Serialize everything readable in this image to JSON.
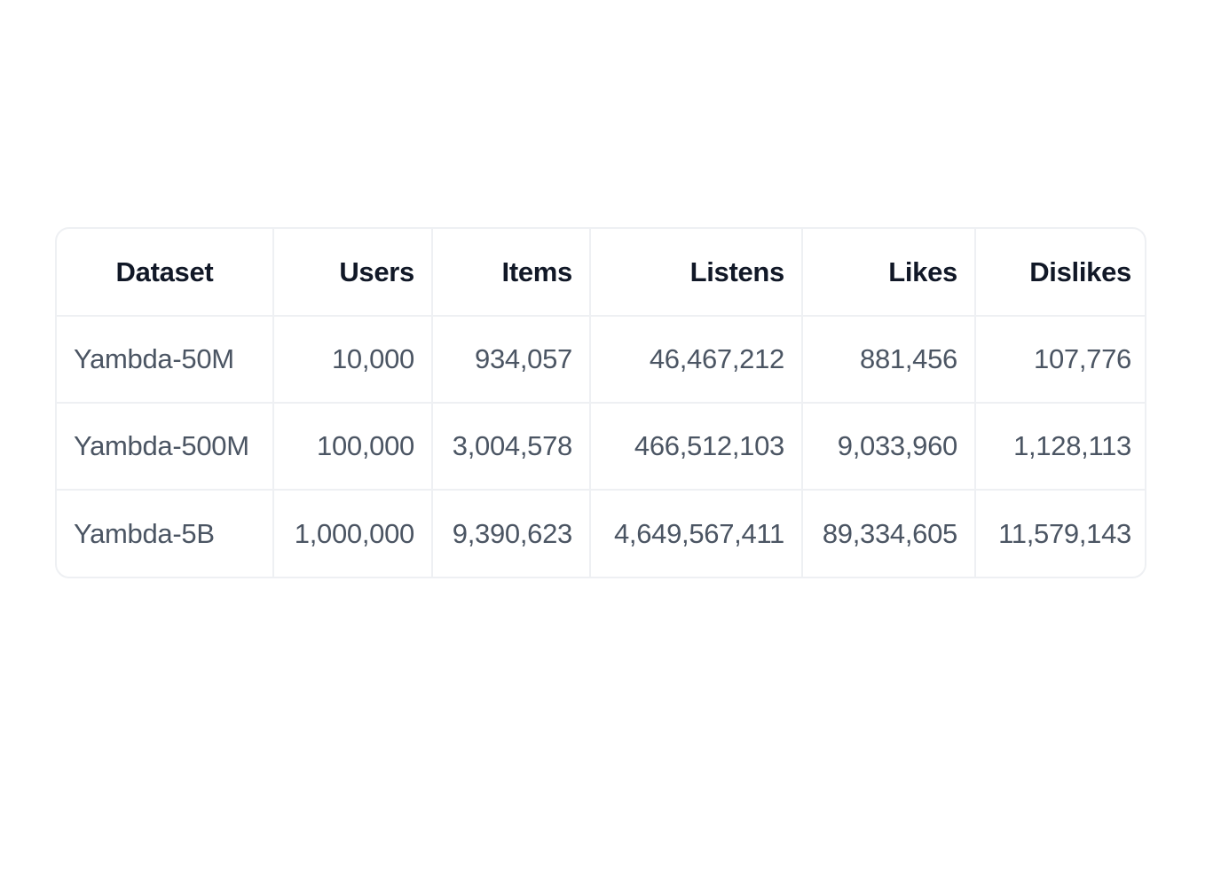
{
  "table": {
    "headers": [
      "Dataset",
      "Users",
      "Items",
      "Listens",
      "Likes",
      "Dislikes"
    ],
    "rows": [
      [
        "Yambda-50M",
        "10,000",
        "934,057",
        "46,467,212",
        "881,456",
        "107,776"
      ],
      [
        "Yambda-500M",
        "100,000",
        "3,004,578",
        "466,512,103",
        "9,033,960",
        "1,128,113"
      ],
      [
        "Yambda-5B",
        "1,000,000",
        "9,390,623",
        "4,649,567,411",
        "89,334,605",
        "11,579,143"
      ]
    ]
  },
  "chart_data": {
    "type": "table",
    "columns": [
      "Dataset",
      "Users",
      "Items",
      "Listens",
      "Likes",
      "Dislikes"
    ],
    "rows": [
      {
        "Dataset": "Yambda-50M",
        "Users": 10000,
        "Items": 934057,
        "Listens": 46467212,
        "Likes": 881456,
        "Dislikes": 107776
      },
      {
        "Dataset": "Yambda-500M",
        "Users": 100000,
        "Items": 3004578,
        "Listens": 466512103,
        "Likes": 9033960,
        "Dislikes": 1128113
      },
      {
        "Dataset": "Yambda-5B",
        "Users": 1000000,
        "Items": 9390623,
        "Listens": 4649567411,
        "Likes": 89334605,
        "Dislikes": 11579143
      }
    ]
  }
}
